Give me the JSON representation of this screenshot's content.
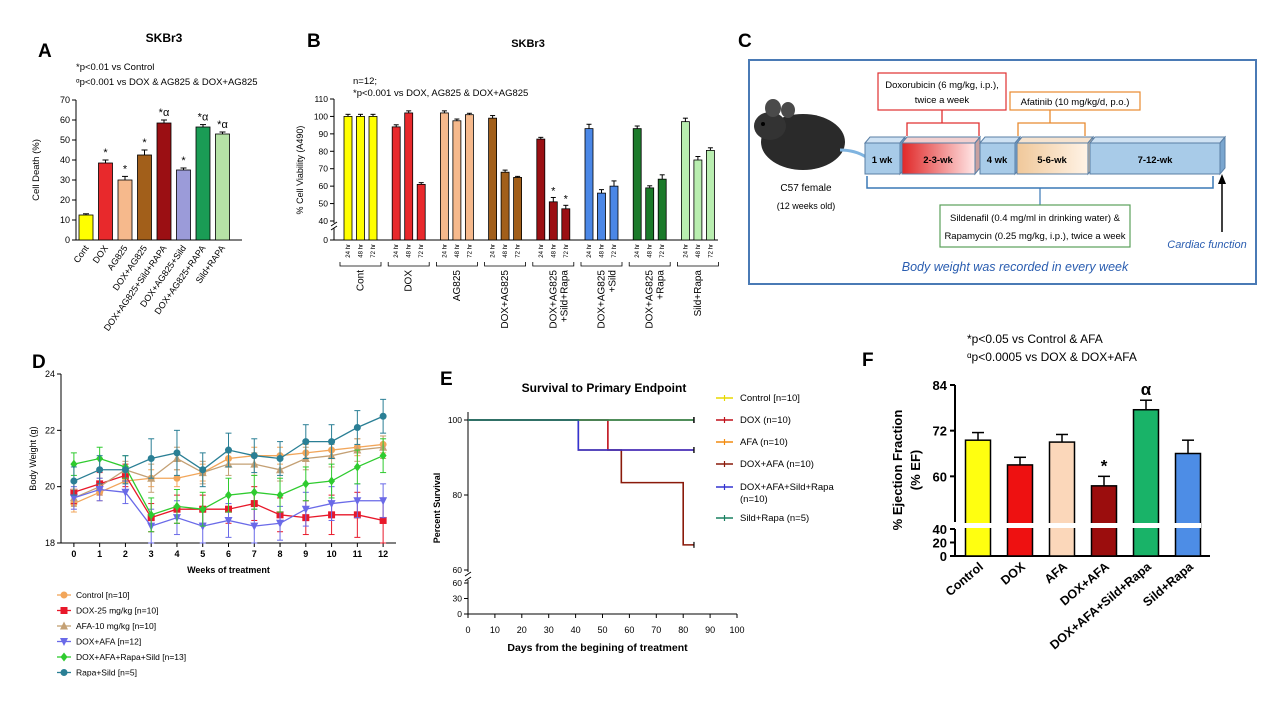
{
  "panels": {
    "A": {
      "letter": "A",
      "title": "SKBr3",
      "notes": [
        "*p<0.01 vs Control",
        "ᵅp<0.001 vs DOX & AG825 & DOX+AG825"
      ],
      "chart_data": {
        "type": "bar",
        "title": "SKBr3",
        "ylabel": "Cell Death (%)",
        "ylim": [
          0,
          70
        ],
        "yticks": [
          0,
          10,
          20,
          30,
          40,
          50,
          60,
          70
        ],
        "categories": [
          "Cont",
          "DOX",
          "AG825",
          "DOX+AG825",
          "DOX+AG825+Sild+RAPA",
          "DOX+AG825+Sild",
          "DOX+AG825+RAPA",
          "Sild+RAPA"
        ],
        "values": [
          12.5,
          38.5,
          30,
          42.5,
          58.5,
          35,
          56.5,
          53
        ],
        "errors": [
          0.6,
          1.5,
          1.8,
          2.5,
          1.5,
          1.0,
          1.2,
          1.0
        ],
        "colors": [
          "#ffff00",
          "#e8292c",
          "#f6b98c",
          "#a25f1a",
          "#9b0f13",
          "#9b9bd9",
          "#1a9c55",
          "#b6e2a6"
        ],
        "annotations": [
          "",
          "*",
          "*",
          "*",
          "*α",
          "*",
          "*α",
          "*α"
        ]
      }
    },
    "B": {
      "letter": "B",
      "title": "SKBr3",
      "notes": [
        "n=12;",
        "*p<0.001 vs DOX, AG825 & DOX+AG825"
      ],
      "chart_data": {
        "type": "bar",
        "title": "SKBr3",
        "ylabel": "% Cell Viability (A490)",
        "ylim": [
          0,
          110
        ],
        "yticks": [
          0,
          40,
          50,
          60,
          70,
          80,
          90,
          100,
          110
        ],
        "time_labels": [
          "24 hr",
          "48 hr",
          "72 hr"
        ],
        "groups": [
          "Cont",
          "DOX",
          "AG825",
          "DOX+AG825",
          "DOX+AG825 +Sild+Rapa",
          "DOX+AG825 +Sild",
          "DOX+AG825 +Rapa",
          "Sild+Rapa"
        ],
        "series": [
          {
            "group": "Cont",
            "values": [
              100,
              100,
              100
            ],
            "errors": [
              1.2,
              1.2,
              1.2
            ],
            "color": "#ffff00"
          },
          {
            "group": "DOX",
            "values": [
              94,
              102,
              61
            ],
            "errors": [
              1.2,
              1.2,
              1.0
            ],
            "color": "#e8292c"
          },
          {
            "group": "AG825",
            "values": [
              102,
              97.5,
              101
            ],
            "errors": [
              1.2,
              1.0,
              0.8
            ],
            "color": "#f6b98c"
          },
          {
            "group": "DOX+AG825",
            "values": [
              99,
              68,
              65
            ],
            "errors": [
              1.5,
              1.2,
              0.6
            ],
            "color": "#a25f1a"
          },
          {
            "group": "DOX+AG825 +Sild+Rapa",
            "values": [
              87,
              51,
              47
            ],
            "errors": [
              1.0,
              2.5,
              2.0
            ],
            "color": "#9b0f13"
          },
          {
            "group": "DOX+AG825 +Sild",
            "values": [
              93,
              56,
              60
            ],
            "errors": [
              2.5,
              2.0,
              3.0
            ],
            "color": "#4b87e6"
          },
          {
            "group": "DOX+AG825 +Rapa",
            "values": [
              93,
              59,
              64
            ],
            "errors": [
              1.5,
              1.2,
              2.5
            ],
            "color": "#1b7a2a"
          },
          {
            "group": "Sild+Rapa",
            "values": [
              97,
              75,
              80.5
            ],
            "errors": [
              2.0,
              2.0,
              1.5
            ],
            "color": "#b9eeb0"
          }
        ],
        "annotations": [
          {
            "group": "DOX+AG825 +Sild+Rapa",
            "bar": 1,
            "text": "*"
          },
          {
            "group": "DOX+AG825 +Sild+Rapa",
            "bar": 2,
            "text": "*"
          }
        ]
      }
    },
    "C": {
      "letter": "C",
      "mouse_label_1": "C57 female",
      "mouse_label_2": "(12 weeks old)",
      "box_dox_1": "Doxorubicin (6 mg/kg, i.p.),",
      "box_dox_2": "twice a week",
      "box_afa": "Afatinib (10 mg/kg/d, p.o.)",
      "timeline": [
        "1 wk",
        "2-3-wk",
        "4 wk",
        "5-6-wk",
        "7-12-wk"
      ],
      "box_sild_1": "Sildenafil (0.4 mg/ml in drinking water) &",
      "box_sild_2": "Rapamycin (0.25 mg/kg, i.p.), twice a week",
      "cardiac": "Cardiac function",
      "body_weight": "Body weight was recorded in every week"
    },
    "D": {
      "letter": "D",
      "chart_data": {
        "type": "line",
        "xlabel": "Weeks of treatment",
        "ylabel": "Body Weight (g)",
        "xlim": [
          -0.5,
          12.5
        ],
        "ylim": [
          18,
          24
        ],
        "xticks": [
          0,
          1,
          2,
          3,
          4,
          5,
          6,
          7,
          8,
          9,
          10,
          11,
          12
        ],
        "yticks": [
          18,
          20,
          22,
          24
        ],
        "x": [
          0,
          1,
          2,
          3,
          4,
          5,
          6,
          7,
          8,
          9,
          10,
          11,
          12
        ],
        "series": [
          {
            "name": "Control [n=10]",
            "color": "#f2a65a",
            "marker": "circle",
            "values": [
              19.4,
              19.8,
              20.2,
              20.3,
              20.3,
              20.5,
              21.0,
              21.1,
              21.1,
              21.2,
              21.3,
              21.4,
              21.5
            ],
            "errors": [
              0.3,
              0.3,
              0.3,
              0.3,
              0.3,
              0.3,
              0.3,
              0.3,
              0.3,
              0.3,
              0.3,
              0.3,
              0.3
            ]
          },
          {
            "name": "DOX-25 mg/kg [n=10]",
            "color": "#e8182a",
            "marker": "square",
            "values": [
              19.8,
              20.1,
              20.4,
              18.9,
              19.2,
              19.2,
              19.2,
              19.4,
              19.0,
              18.9,
              19.0,
              19.0,
              18.8
            ],
            "errors": [
              0.4,
              0.4,
              0.4,
              0.5,
              0.5,
              0.5,
              0.5,
              0.6,
              0.6,
              0.6,
              0.7,
              0.8,
              0.8
            ]
          },
          {
            "name": "AFA-10 mg/kg [n=10]",
            "color": "#c4a074",
            "marker": "triangle-up",
            "values": [
              19.6,
              20.0,
              20.6,
              20.3,
              21.0,
              20.5,
              20.8,
              20.8,
              20.6,
              21.0,
              21.1,
              21.3,
              21.4
            ],
            "errors": [
              0.3,
              0.3,
              0.3,
              0.5,
              0.4,
              0.4,
              0.4,
              0.4,
              0.4,
              0.4,
              0.4,
              0.4,
              0.4
            ]
          },
          {
            "name": "DOX+AFA [n=12]",
            "color": "#6a6ae8",
            "marker": "triangle-down",
            "values": [
              19.6,
              19.9,
              19.8,
              18.6,
              18.9,
              18.6,
              18.8,
              18.6,
              18.7,
              19.2,
              19.4,
              19.5,
              19.5
            ],
            "errors": [
              0.4,
              0.4,
              0.4,
              0.6,
              0.6,
              0.6,
              0.6,
              0.6,
              0.6,
              0.6,
              0.6,
              0.6,
              0.6
            ]
          },
          {
            "name": "DOX+AFA+Rapa+Sild [n=13]",
            "color": "#2fcb2f",
            "marker": "diamond",
            "values": [
              20.8,
              21.0,
              20.7,
              19.0,
              19.3,
              19.2,
              19.7,
              19.8,
              19.7,
              20.1,
              20.2,
              20.7,
              21.1
            ],
            "errors": [
              0.4,
              0.4,
              0.4,
              0.6,
              0.6,
              0.6,
              0.6,
              0.6,
              0.6,
              0.6,
              0.6,
              0.6,
              0.6
            ]
          },
          {
            "name": "Rapa+Sild [n=5]",
            "color": "#2a7f95",
            "marker": "circle",
            "values": [
              20.2,
              20.6,
              20.6,
              21.0,
              21.2,
              20.6,
              21.3,
              21.1,
              21.0,
              21.6,
              21.6,
              22.1,
              22.5
            ],
            "errors": [
              0.5,
              0.5,
              0.5,
              0.7,
              0.8,
              0.6,
              0.6,
              0.6,
              0.6,
              0.6,
              0.6,
              0.6,
              0.6
            ]
          }
        ]
      }
    },
    "E": {
      "letter": "E",
      "chart_data": {
        "type": "line",
        "title": "Survival to Primary Endpoint",
        "xlabel": "Days from the begining of treatment",
        "ylabel": "Percent Survival",
        "xlim": [
          0,
          100
        ],
        "xticks": [
          0,
          10,
          20,
          30,
          40,
          50,
          60,
          70,
          80,
          90,
          100
        ],
        "yticks_upper": [
          60,
          80,
          100
        ],
        "yticks_lower": [
          0,
          30,
          60
        ],
        "series": [
          {
            "name": "Control [n=10]",
            "color": "#e8d800",
            "steps": [
              [
                0,
                100
              ],
              [
                84,
                100
              ]
            ]
          },
          {
            "name": "DOX (n=10)",
            "color": "#c0101a",
            "steps": [
              [
                0,
                100
              ],
              [
                52,
                100
              ],
              [
                52,
                92
              ],
              [
                84,
                92
              ]
            ]
          },
          {
            "name": "AFA (n=10)",
            "color": "#f28c10",
            "steps": [
              [
                0,
                100
              ],
              [
                84,
                100
              ]
            ]
          },
          {
            "name": "DOX+AFA (n=10)",
            "color": "#8a1a0a",
            "steps": [
              [
                0,
                100
              ],
              [
                41,
                100
              ],
              [
                41,
                92
              ],
              [
                57,
                92
              ],
              [
                57,
                83.3
              ],
              [
                80,
                83.3
              ],
              [
                80,
                66.7
              ],
              [
                84,
                66.7
              ]
            ]
          },
          {
            "name": "DOX+AFA+Sild+Rapa (n=10)",
            "color": "#3434d0",
            "steps": [
              [
                0,
                100
              ],
              [
                41,
                100
              ],
              [
                41,
                92
              ],
              [
                84,
                92
              ]
            ]
          },
          {
            "name": "Sild+Rapa (n=5)",
            "color": "#1a8060",
            "steps": [
              [
                0,
                100
              ],
              [
                84,
                100
              ]
            ]
          }
        ]
      }
    },
    "F": {
      "letter": "F",
      "notes": [
        "*p<0.05 vs Control & AFA",
        "ᵅp<0.0005 vs DOX & DOX+AFA"
      ],
      "chart_data": {
        "type": "bar",
        "ylabel": "% Ejection Fraction (% EF)",
        "yticks_upper": [
          60,
          72,
          84
        ],
        "yticks_lower": [
          0,
          20,
          40
        ],
        "categories": [
          "Control",
          "DOX",
          "AFA",
          "DOX+AFA",
          "DOX+AFA+Sild+Rapa",
          "Sild+Rapa"
        ],
        "values": [
          69.5,
          63,
          69,
          57.5,
          77.5,
          66
        ],
        "errors": [
          2,
          2,
          2,
          2.5,
          2.5,
          3.5
        ],
        "colors": [
          "#ffff10",
          "#ee1111",
          "#fbd7ba",
          "#9b0d0d",
          "#19b368",
          "#4d8de6"
        ],
        "annotations": [
          "",
          "",
          "",
          "*",
          "α",
          ""
        ]
      }
    }
  }
}
